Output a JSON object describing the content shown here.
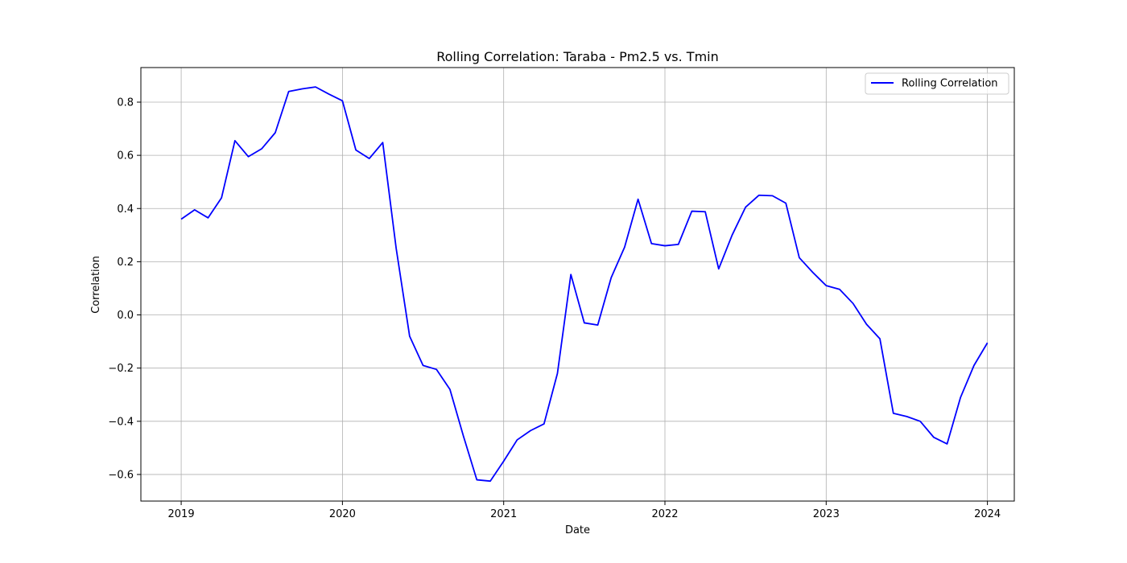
{
  "chart_data": {
    "type": "line",
    "title": "Rolling Correlation: Taraba - Pm2.5 vs. Tmin",
    "xlabel": "Date",
    "ylabel": "Correlation",
    "xlim": [
      "2018-10-01",
      "2024-03-01"
    ],
    "ylim": [
      -0.7,
      0.93
    ],
    "grid": true,
    "legend": "top-right",
    "x_ticks": [
      "2019",
      "2020",
      "2021",
      "2022",
      "2023",
      "2024"
    ],
    "y_ticks": [
      "−0.6",
      "−0.4",
      "−0.2",
      "0.0",
      "0.2",
      "0.4",
      "0.6",
      "0.8"
    ],
    "series": [
      {
        "name": "Rolling Correlation",
        "color": "#0000ff",
        "x": [
          "2019-01",
          "2019-02",
          "2019-03",
          "2019-04",
          "2019-05",
          "2019-06",
          "2019-07",
          "2019-08",
          "2019-09",
          "2019-10",
          "2019-11",
          "2019-12",
          "2020-01",
          "2020-02",
          "2020-03",
          "2020-04",
          "2020-05",
          "2020-06",
          "2020-07",
          "2020-08",
          "2020-09",
          "2020-10",
          "2020-11",
          "2020-12",
          "2021-01",
          "2021-02",
          "2021-03",
          "2021-04",
          "2021-05",
          "2021-06",
          "2021-07",
          "2021-08",
          "2021-09",
          "2021-10",
          "2021-11",
          "2021-12",
          "2022-01",
          "2022-02",
          "2022-03",
          "2022-04",
          "2022-05",
          "2022-06",
          "2022-07",
          "2022-08",
          "2022-09",
          "2022-10",
          "2022-11",
          "2022-12",
          "2023-01",
          "2023-02",
          "2023-03",
          "2023-04",
          "2023-05",
          "2023-06",
          "2023-07",
          "2023-08",
          "2023-09",
          "2023-10",
          "2023-11",
          "2023-12",
          "2024-01"
        ],
        "y": [
          0.36,
          0.395,
          0.365,
          0.44,
          0.655,
          0.595,
          0.625,
          0.685,
          0.84,
          0.85,
          0.857,
          0.83,
          0.805,
          0.62,
          0.588,
          0.648,
          0.25,
          -0.08,
          -0.19,
          -0.205,
          -0.28,
          -0.455,
          -0.62,
          -0.625,
          -0.55,
          -0.47,
          -0.435,
          -0.41,
          -0.22,
          0.152,
          -0.03,
          -0.038,
          0.14,
          0.255,
          0.435,
          0.268,
          0.26,
          0.265,
          0.39,
          0.388,
          0.173,
          0.3,
          0.405,
          0.45,
          0.448,
          0.42,
          0.215,
          0.16,
          0.11,
          0.096,
          0.043,
          -0.035,
          -0.09,
          -0.37,
          -0.382,
          -0.4,
          -0.46,
          -0.485,
          -0.31,
          -0.19,
          -0.105
        ]
      }
    ]
  }
}
